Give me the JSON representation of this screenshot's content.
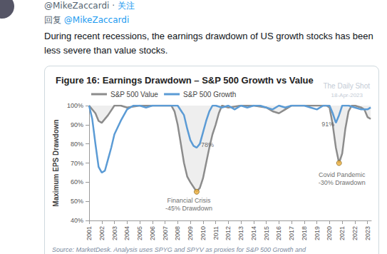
{
  "tweet": {
    "handle": "@MikeZaccardi",
    "separator": "·",
    "follow": "关注",
    "reply_prefix": "回复",
    "reply_to": "@MikeZaccardi",
    "text": "During recent recessions, the earnings drawdown of US growth stocks has been less severe than value stocks."
  },
  "chart_data": {
    "type": "line",
    "title": "Figure 16: Earnings Drawdown – S&P 500 Growth vs Value",
    "y_label": "Maximum EPS Drawdown",
    "source": "Source: MarketDesk. Analysis uses SPYG and SPYV as proxies for S&P 500 Growth and",
    "watermark": [
      "The Daily Shot",
      "18-Apr-2023"
    ],
    "series": [
      {
        "name": "S&P 500 Value",
        "color": "#8c8c8c",
        "x": [
          2001,
          2001.5,
          2001.75,
          2002,
          2002.5,
          2003,
          2003.5,
          2004,
          2005,
          2006,
          2007,
          2007.5,
          2007.75,
          2008,
          2008.25,
          2008.5,
          2008.75,
          2009,
          2009.5,
          2009.75,
          2010,
          2010.25,
          2010.5,
          2010.75,
          2011,
          2011.25,
          2011.5,
          2012,
          2013,
          2014,
          2015,
          2015.5,
          2016,
          2016.5,
          2017,
          2018,
          2019,
          2019.75,
          2020,
          2020.25,
          2020.5,
          2020.75,
          2021,
          2021.25,
          2021.5,
          2021.75,
          2022,
          2022.5,
          2022.75,
          2023,
          2023.25
        ],
        "values": [
          100,
          96,
          92,
          91,
          95,
          100,
          100,
          99,
          100,
          100,
          100,
          100,
          97,
          90,
          80,
          70,
          63,
          60,
          55,
          57,
          62,
          70,
          78,
          85,
          90,
          96,
          100,
          99,
          100,
          100,
          99,
          97,
          96,
          98,
          100,
          100,
          100,
          100,
          99,
          90,
          78,
          70,
          75,
          88,
          97,
          100,
          100,
          99,
          98,
          94,
          93
        ]
      },
      {
        "name": "S&P 500 Growth",
        "color": "#5b9bd5",
        "x": [
          2001,
          2001.25,
          2001.5,
          2001.75,
          2002,
          2002.25,
          2002.5,
          2002.75,
          2003,
          2003.5,
          2004,
          2004.5,
          2005,
          2005.5,
          2006,
          2006.5,
          2007,
          2007.5,
          2008,
          2008.5,
          2008.75,
          2009,
          2009.25,
          2009.5,
          2009.75,
          2010,
          2010.25,
          2010.5,
          2010.75,
          2011,
          2011.5,
          2012,
          2012.5,
          2013,
          2013.5,
          2014,
          2014.5,
          2015,
          2015.5,
          2016,
          2016.5,
          2017,
          2017.5,
          2018,
          2018.5,
          2019,
          2019.5,
          2020,
          2020.25,
          2020.5,
          2020.75,
          2021,
          2021.5,
          2022,
          2022.5,
          2023,
          2023.25
        ],
        "values": [
          100,
          93,
          80,
          68,
          65,
          66,
          72,
          78,
          85,
          92,
          98,
          100,
          100,
          99,
          100,
          100,
          100,
          100,
          100,
          95,
          88,
          82,
          79,
          78,
          80,
          86,
          92,
          97,
          100,
          100,
          99,
          100,
          98,
          100,
          99,
          100,
          100,
          99,
          98,
          100,
          99,
          100,
          100,
          100,
          99,
          98,
          100,
          100,
          96,
          91,
          95,
          100,
          100,
          99,
          98,
          98,
          99
        ]
      }
    ],
    "annotations": [
      {
        "text": "78%",
        "x": 2009.5,
        "y": 78
      },
      {
        "text": "91%",
        "x": 2020.5,
        "y": 91
      },
      {
        "text": "Financial Crisis\n-45% Drawdown",
        "x": 2009.5,
        "y": 55,
        "marker": "circle"
      },
      {
        "text": "Covid Pandemic\n-30% Drawdown",
        "x": 2020.75,
        "y": 70,
        "marker": "circle"
      }
    ],
    "xlim": [
      2001,
      2023.3
    ],
    "xticks": [
      2001,
      2002,
      2003,
      2004,
      2005,
      2006,
      2007,
      2008,
      2009,
      2010,
      2011,
      2012,
      2013,
      2014,
      2015,
      2016,
      2017,
      2018,
      2019,
      2020,
      2021,
      2022,
      2023
    ],
    "ylim": [
      40,
      100
    ],
    "yticks": [
      {
        "value": 40,
        "label": "40%"
      },
      {
        "value": 50,
        "label": "50%"
      },
      {
        "value": 60,
        "label": "60%"
      },
      {
        "value": 70,
        "label": "70%"
      },
      {
        "value": 80,
        "label": "80%"
      },
      {
        "value": 90,
        "label": "90%"
      },
      {
        "value": 100,
        "label": "100%"
      }
    ],
    "grid": false,
    "legend": "top"
  }
}
